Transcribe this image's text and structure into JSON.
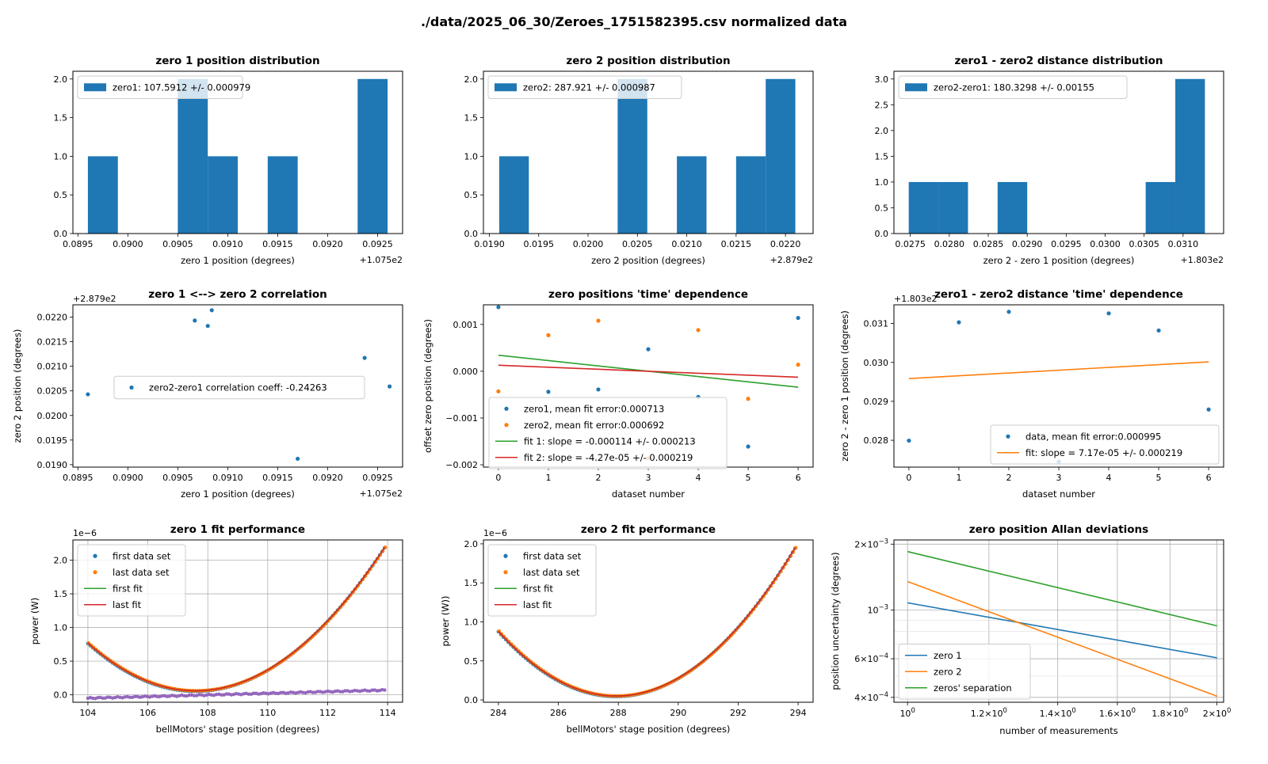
{
  "suptitle": "./data/2025_06_30/Zeroes_1751582395.csv    normalized data",
  "colors": {
    "c0": "#1f77b4",
    "c1": "#ff7f0e",
    "c2": "#2ca02c",
    "c3": "#d62728",
    "c4": "#9467bd"
  },
  "chart_data": [
    {
      "type": "bar",
      "title": "zero 1 position distribution",
      "xlabel": "zero 1 position (degrees)",
      "ylabel": "",
      "offset_label": "+1.075e2",
      "xlim": [
        0.08945,
        0.09275
      ],
      "ylim": [
        0,
        2.1
      ],
      "xticks": [
        0.0895,
        0.09,
        0.0905,
        0.091,
        0.0915,
        0.092,
        0.0925
      ],
      "xtick_labels": [
        "0.0895",
        "0.0900",
        "0.0905",
        "0.0910",
        "0.0915",
        "0.0920",
        "0.0925"
      ],
      "yticks": [
        0,
        0.5,
        1,
        1.5,
        2
      ],
      "ytick_labels": [
        "0.0",
        "0.5",
        "1.0",
        "1.5",
        "2.0"
      ],
      "bins": [
        [
          0.0896,
          0.0899,
          1
        ],
        [
          0.0899,
          0.0902,
          0
        ],
        [
          0.0902,
          0.0905,
          0
        ],
        [
          0.0905,
          0.0908,
          2
        ],
        [
          0.0908,
          0.0911,
          1
        ],
        [
          0.0911,
          0.0914,
          0
        ],
        [
          0.0914,
          0.0917,
          1
        ],
        [
          0.0917,
          0.092,
          0
        ],
        [
          0.092,
          0.0923,
          0
        ],
        [
          0.0923,
          0.0926,
          2
        ]
      ],
      "legend": [
        {
          "label": "zero1: 107.5912 +/- 0.000979",
          "marker": "patch"
        }
      ],
      "legend_loc": "upper left",
      "grid": false
    },
    {
      "type": "bar",
      "title": "zero 2 position distribution",
      "xlabel": "zero 2 position (degrees)",
      "ylabel": "",
      "offset_label": "+2.879e2",
      "xlim": [
        0.01894,
        0.02228
      ],
      "ylim": [
        0,
        2.1
      ],
      "xticks": [
        0.019,
        0.0195,
        0.02,
        0.0205,
        0.021,
        0.0215,
        0.022
      ],
      "xtick_labels": [
        "0.0190",
        "0.0195",
        "0.0200",
        "0.0205",
        "0.0210",
        "0.0215",
        "0.0220"
      ],
      "yticks": [
        0,
        0.5,
        1,
        1.5,
        2
      ],
      "ytick_labels": [
        "0.0",
        "0.5",
        "1.0",
        "1.5",
        "2.0"
      ],
      "bins": [
        [
          0.0191,
          0.0194,
          1
        ],
        [
          0.0194,
          0.0197,
          0
        ],
        [
          0.0197,
          0.02,
          0
        ],
        [
          0.02,
          0.0203,
          0
        ],
        [
          0.0203,
          0.0206,
          2
        ],
        [
          0.0206,
          0.0209,
          0
        ],
        [
          0.0209,
          0.0212,
          1
        ],
        [
          0.0212,
          0.0215,
          0
        ],
        [
          0.0215,
          0.0218,
          1
        ],
        [
          0.0218,
          0.0221,
          2
        ]
      ],
      "legend": [
        {
          "label": "zero2: 287.921 +/- 0.000987",
          "marker": "patch"
        }
      ],
      "legend_loc": "upper left",
      "grid": false
    },
    {
      "type": "bar",
      "title": "zero1 - zero2 distance distribution",
      "xlabel": "zero 2 - zero 1 position (degrees)",
      "ylabel": "",
      "offset_label": "+1.803e2",
      "xlim": [
        0.02729,
        0.03152
      ],
      "ylim": [
        0,
        3.15
      ],
      "xticks": [
        0.0275,
        0.028,
        0.0285,
        0.029,
        0.0295,
        0.03,
        0.0305,
        0.031
      ],
      "xtick_labels": [
        "0.0275",
        "0.0280",
        "0.0285",
        "0.0290",
        "0.0295",
        "0.0300",
        "0.0305",
        "0.0310"
      ],
      "yticks": [
        0,
        0.5,
        1,
        1.5,
        2,
        2.5,
        3
      ],
      "ytick_labels": [
        "0.0",
        "0.5",
        "1.0",
        "1.5",
        "2.0",
        "2.5",
        "3.0"
      ],
      "bins": [
        [
          0.02748,
          0.02786,
          1
        ],
        [
          0.02786,
          0.02824,
          1
        ],
        [
          0.02824,
          0.02862,
          0
        ],
        [
          0.02862,
          0.029,
          1
        ],
        [
          0.029,
          0.02938,
          0
        ],
        [
          0.02938,
          0.02976,
          0
        ],
        [
          0.02976,
          0.03014,
          0
        ],
        [
          0.03014,
          0.03052,
          0
        ],
        [
          0.03052,
          0.0309,
          1
        ],
        [
          0.0309,
          0.03128,
          3
        ]
      ],
      "legend": [
        {
          "label": "zero2-zero1: 180.3298 +/- 0.00155",
          "marker": "patch"
        }
      ],
      "legend_loc": "upper left",
      "grid": false
    },
    {
      "type": "scatter",
      "title": "zero 1 <--> zero 2 correlation",
      "xlabel": "zero 1 position (degrees)",
      "ylabel": "zero 2 position (degrees)",
      "offset_label": "+1.075e2",
      "y_offset_label": "+2.879e2",
      "xlim": [
        0.08945,
        0.09275
      ],
      "ylim": [
        0.01895,
        0.02225
      ],
      "xticks": [
        0.0895,
        0.09,
        0.0905,
        0.091,
        0.0915,
        0.092,
        0.0925
      ],
      "xtick_labels": [
        "0.0895",
        "0.0900",
        "0.0905",
        "0.0910",
        "0.0915",
        "0.0920",
        "0.0925"
      ],
      "yticks": [
        0.019,
        0.0195,
        0.02,
        0.0205,
        0.021,
        0.0215,
        0.022
      ],
      "ytick_labels": [
        "0.0190",
        "0.0195",
        "0.0200",
        "0.0205",
        "0.0210",
        "0.0215",
        "0.0220"
      ],
      "series": [
        {
          "name": "zero2-zero1 correlation coeff: -0.24263",
          "color": "c0",
          "x": [
            0.0896,
            0.09067,
            0.0908,
            0.09084,
            0.0917,
            0.09237,
            0.09262
          ],
          "y": [
            0.02043,
            0.02193,
            0.02182,
            0.02214,
            0.01912,
            0.02117,
            0.02059
          ]
        }
      ],
      "legend_loc": "center",
      "grid": false
    },
    {
      "type": "scatter",
      "title": "zero positions 'time' dependence",
      "xlabel": "dataset number",
      "ylabel": "offset zero position (degrees)",
      "xlim": [
        -0.3,
        6.3
      ],
      "ylim": [
        -0.00205,
        0.00142
      ],
      "xticks": [
        0,
        1,
        2,
        3,
        4,
        5,
        6
      ],
      "xtick_labels": [
        "0",
        "1",
        "2",
        "3",
        "4",
        "5",
        "6"
      ],
      "yticks": [
        -0.002,
        -0.001,
        0,
        0.001
      ],
      "ytick_labels": [
        "−0.002",
        "−0.001",
        "0.000",
        "0.001"
      ],
      "series": [
        {
          "name": "zero1, mean fit error:0.000713",
          "color": "c0",
          "kind": "points",
          "x": [
            0,
            1,
            2,
            3,
            4,
            5,
            6
          ],
          "y": [
            0.00137,
            -0.00044,
            -0.00039,
            0.00047,
            -0.00055,
            -0.00161,
            0.00114
          ]
        },
        {
          "name": "zero2, mean fit error:0.000692",
          "color": "c1",
          "kind": "points",
          "x": [
            0,
            1,
            2,
            3,
            4,
            5,
            6
          ],
          "y": [
            -0.00043,
            0.00077,
            0.00108,
            -0.00186,
            0.00088,
            -0.00059,
            0.00014
          ]
        },
        {
          "name": "fit 1: slope = -0.000114 +/- 0.000213",
          "color": "c2",
          "kind": "line",
          "x": [
            0,
            6
          ],
          "y": [
            0.000342,
            -0.000342
          ]
        },
        {
          "name": "fit 2: slope = -4.27e-05 +/- 0.000219",
          "color": "c3",
          "kind": "line",
          "x": [
            0,
            6
          ],
          "y": [
            0.000128,
            -0.000128
          ]
        }
      ],
      "legend_loc": "lower left",
      "grid": false
    },
    {
      "type": "scatter",
      "title": "zero1 - zero2 distance 'time' dependence",
      "xlabel": "dataset number",
      "ylabel": "zero 2 - zero 1 position (degrees)",
      "y_offset_label": "+1.803e2",
      "xlim": [
        -0.3,
        6.3
      ],
      "ylim": [
        0.02731,
        0.03148
      ],
      "xticks": [
        0,
        1,
        2,
        3,
        4,
        5,
        6
      ],
      "xtick_labels": [
        "0",
        "1",
        "2",
        "3",
        "4",
        "5",
        "6"
      ],
      "yticks": [
        0.028,
        0.029,
        0.03,
        0.031
      ],
      "ytick_labels": [
        "0.028",
        "0.029",
        "0.030",
        "0.031"
      ],
      "series": [
        {
          "name": "data, mean fit error:0.000995",
          "color": "c0",
          "kind": "points",
          "x": [
            0,
            1,
            2,
            3,
            4,
            5,
            6
          ],
          "y": [
            0.02799,
            0.03103,
            0.0313,
            0.02745,
            0.03126,
            0.03082,
            0.02879
          ]
        },
        {
          "name": "fit: slope = 7.17e-05 +/- 0.000219",
          "color": "c1",
          "kind": "line",
          "x": [
            0,
            6
          ],
          "y": [
            0.029585,
            0.030015
          ]
        }
      ],
      "legend_loc": "lower right",
      "grid": false
    },
    {
      "type": "line",
      "title": "zero 1 fit performance",
      "xlabel": "bellMotors' stage position (degrees)",
      "ylabel": "power (W)",
      "y_multiplier": "1e−6",
      "xlim": [
        103.5,
        114.5
      ],
      "ylim": [
        -1.1e-07,
        2.3e-06
      ],
      "xticks": [
        104,
        106,
        108,
        110,
        112,
        114
      ],
      "xtick_labels": [
        "104",
        "106",
        "108",
        "110",
        "112",
        "114"
      ],
      "yticks": [
        0,
        5e-07,
        1e-06,
        1.5e-06,
        2e-06
      ],
      "ytick_labels": [
        "0.0",
        "0.5",
        "1.0",
        "1.5",
        "2.0"
      ],
      "curve": {
        "vertex_x": 107.59,
        "min_y": 6e-08,
        "start_x": 104.0,
        "start_y": 7.7e-07,
        "end_x": 113.9,
        "end_y": 2.19e-06
      },
      "residual": {
        "start_x": 104.0,
        "start_y": -5e-08,
        "end_x": 113.9,
        "end_y": 7e-08
      },
      "series": [
        {
          "name": "first data set",
          "color": "c0",
          "kind": "points"
        },
        {
          "name": "last data set",
          "color": "c1",
          "kind": "points"
        },
        {
          "name": "first fit",
          "color": "c2",
          "kind": "line"
        },
        {
          "name": "last fit",
          "color": "c3",
          "kind": "line"
        }
      ],
      "legend_loc": "upper left",
      "grid": true
    },
    {
      "type": "line",
      "title": "zero 2 fit performance",
      "xlabel": "bellMotors' stage position (degrees)",
      "ylabel": "power (W))",
      "y_multiplier": "1e−6",
      "xlim": [
        283.5,
        294.5
      ],
      "ylim": [
        -3e-08,
        2.05e-06
      ],
      "xticks": [
        284,
        286,
        288,
        290,
        292,
        294
      ],
      "xtick_labels": [
        "284",
        "286",
        "288",
        "290",
        "292",
        "294"
      ],
      "yticks": [
        0,
        5e-07,
        1e-06,
        1.5e-06,
        2e-06
      ],
      "ytick_labels": [
        "0.0",
        "0.5",
        "1.0",
        "1.5",
        "2.0"
      ],
      "curve": {
        "vertex_x": 287.92,
        "min_y": 5e-08,
        "start_x": 284.0,
        "start_y": 8.8e-07,
        "end_x": 293.9,
        "end_y": 1.95e-06
      },
      "series": [
        {
          "name": "first data set",
          "color": "c0",
          "kind": "points"
        },
        {
          "name": "last data set",
          "color": "c1",
          "kind": "points"
        },
        {
          "name": "first fit",
          "color": "c2",
          "kind": "line"
        },
        {
          "name": "last fit",
          "color": "c3",
          "kind": "line"
        }
      ],
      "legend_loc": "upper left",
      "grid": false
    },
    {
      "type": "line",
      "title": "zero position Allan deviations",
      "xlabel": "number of measurements",
      "ylabel": "position uncertainty (degrees)",
      "xscale": "log",
      "yscale": "log",
      "xlim": [
        0.97,
        2.03
      ],
      "ylim": [
        0.00038,
        0.00209
      ],
      "xticks": [
        1.0,
        1.2,
        1.4,
        1.6,
        1.8,
        2.0
      ],
      "xtick_labels": [
        "10^0",
        "1.2×10^0",
        "1.4×10^0",
        "1.6×10^0",
        "1.8×10^0",
        "2×10^0"
      ],
      "yticks": [
        0.0004,
        0.0006,
        0.001,
        0.002
      ],
      "ytick_labels": [
        "4×10^−4",
        "6×10^−4",
        "10^−3",
        "2×10^−3"
      ],
      "series": [
        {
          "name": "zero 1",
          "color": "c0",
          "x": [
            1,
            2
          ],
          "y": [
            0.00108,
            0.000606
          ]
        },
        {
          "name": "zero 2",
          "color": "c1",
          "x": [
            1,
            2
          ],
          "y": [
            0.00135,
            0.000405
          ]
        },
        {
          "name": "zeros' separation",
          "color": "c2",
          "x": [
            1,
            2
          ],
          "y": [
            0.00185,
            0.000848
          ]
        }
      ],
      "legend_loc": "lower left",
      "grid": true
    }
  ]
}
